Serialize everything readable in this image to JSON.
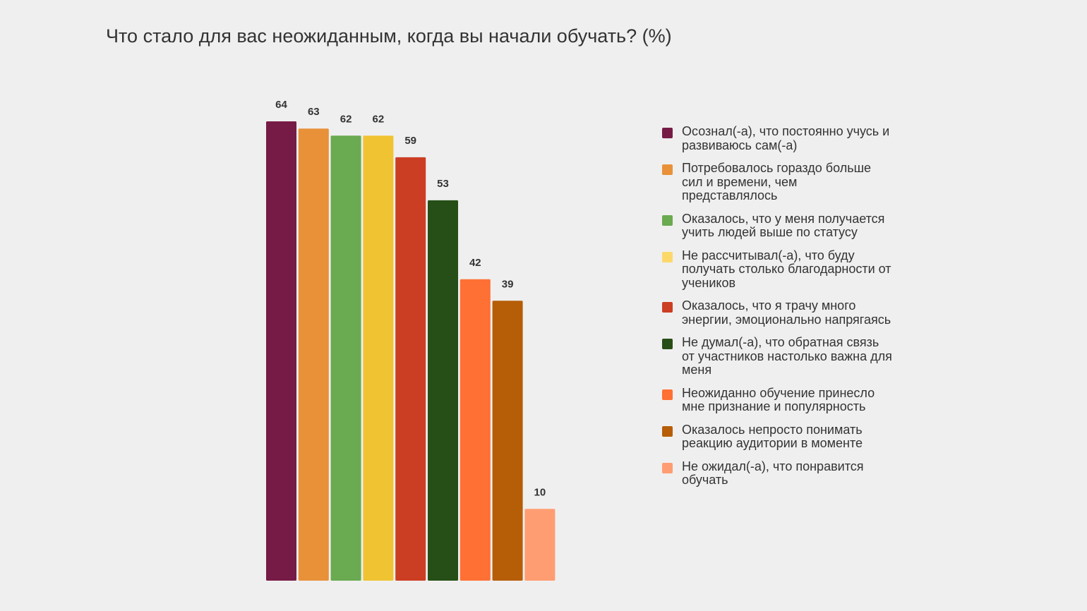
{
  "chart_data": {
    "type": "bar",
    "title": "Что стало для вас неожиданным, когда вы начали обучать? (%)",
    "xlabel": "",
    "ylabel": "",
    "ylim": [
      0,
      64
    ],
    "grid": false,
    "legend_position": "right",
    "categories": [
      "Осознал(-а), что постоянно учусь и развиваюсь сам(-а)",
      "Потребовалось гораздо больше сил и времени, чем представлялось",
      "Оказалось, что у меня получается учить людей выше по статусу",
      "Не рассчитывал(-а), что буду получать столько благодарности от учеников",
      "Оказалось, что я трачу много энергии, эмоционально напрягаясь",
      "Не думал(-а), что обратная связь от участников настолько важна для меня",
      "Неожиданно обучение принесло мне признание и популярность",
      "Оказалось непросто понимать реакцию аудитории в моменте",
      "Не ожидал(-а), что понравится обучать"
    ],
    "values": [
      64,
      63,
      62,
      62,
      59,
      53,
      42,
      39,
      10
    ],
    "colors": [
      "#761b46",
      "#e89139",
      "#6aaa50",
      "#f0c332",
      "#cc3e24",
      "#264f17",
      "#ff7034",
      "#b65d07",
      "#ff9d72"
    ],
    "legend_colors": [
      "#761b46",
      "#e89139",
      "#6aaa50",
      "#fcd86a",
      "#cc3e24",
      "#264f17",
      "#ff7034",
      "#b65d07",
      "#ff9d72"
    ]
  }
}
